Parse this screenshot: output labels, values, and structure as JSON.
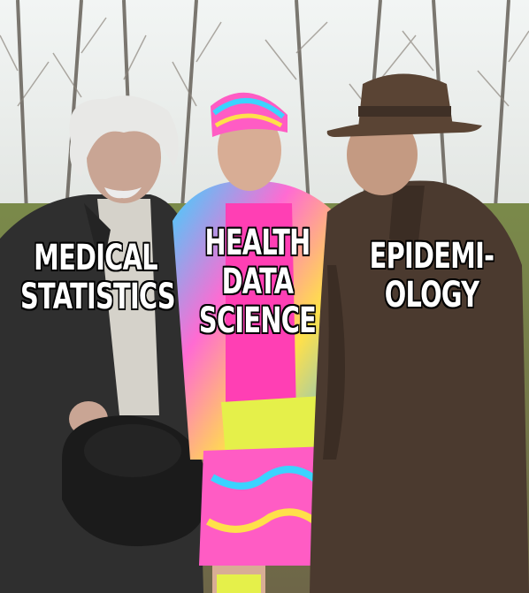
{
  "meme": {
    "left_caption": [
      "MEDICAL",
      "STATISTICS"
    ],
    "middle_caption": [
      "HEALTH",
      "DATA",
      "SCIENCE"
    ],
    "right_caption": [
      "EPIDEMI-",
      "OLOGY"
    ]
  },
  "colors": {
    "sky": "#e9efef",
    "grass": "#8b7e4c",
    "pink_shirt": "#ff3fb4",
    "neon_yellow": "#e5f04a",
    "coat_dark": "#2f2f2f",
    "coat_brown": "#4b3a2f",
    "hat_brown": "#5a4434"
  }
}
